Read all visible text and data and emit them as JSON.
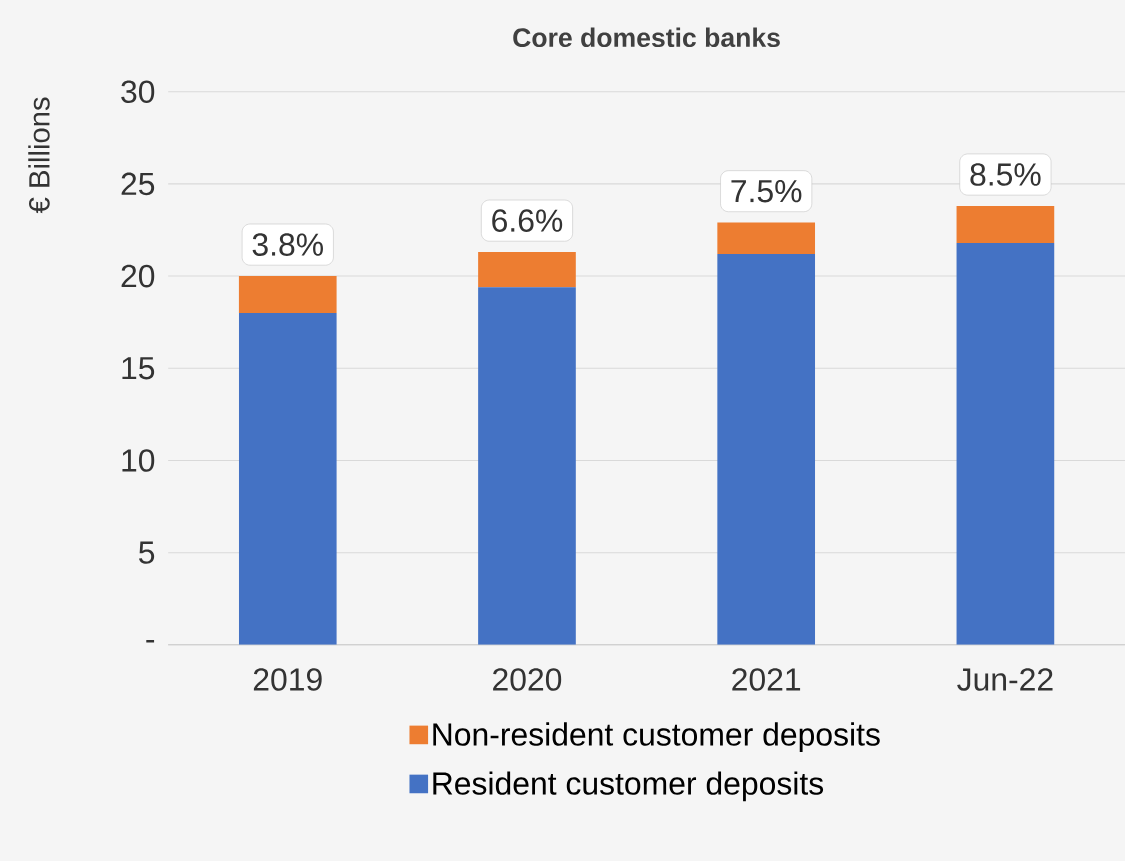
{
  "chart_data": {
    "type": "bar",
    "title": "Core domestic banks",
    "ylabel": "€ Billions",
    "categories": [
      "2019",
      "2020",
      "2021",
      "Jun-22"
    ],
    "stacked": true,
    "series": [
      {
        "name": "Resident customer deposits",
        "color": "#4472c4",
        "values": [
          18.0,
          19.4,
          21.2,
          21.8
        ]
      },
      {
        "name": "Non-resident customer deposits",
        "color": "#ed7d31",
        "values": [
          2.0,
          1.9,
          1.7,
          2.0
        ]
      }
    ],
    "ylim": [
      0,
      30
    ],
    "yticks": [
      {
        "value": 0,
        "label": "-"
      },
      5,
      10,
      15,
      20,
      25,
      30
    ],
    "grid": "y",
    "legend": "bottom",
    "annotations": [
      {
        "text": "3.8%",
        "x": "2019",
        "y": 20.0
      },
      {
        "text": "6.6%",
        "x": "2020",
        "y": 21.3
      },
      {
        "text": "7.5%",
        "x": "2021",
        "y": 22.9
      },
      {
        "text": "8.5%",
        "x": "Jun-22",
        "y": 23.8
      }
    ]
  }
}
